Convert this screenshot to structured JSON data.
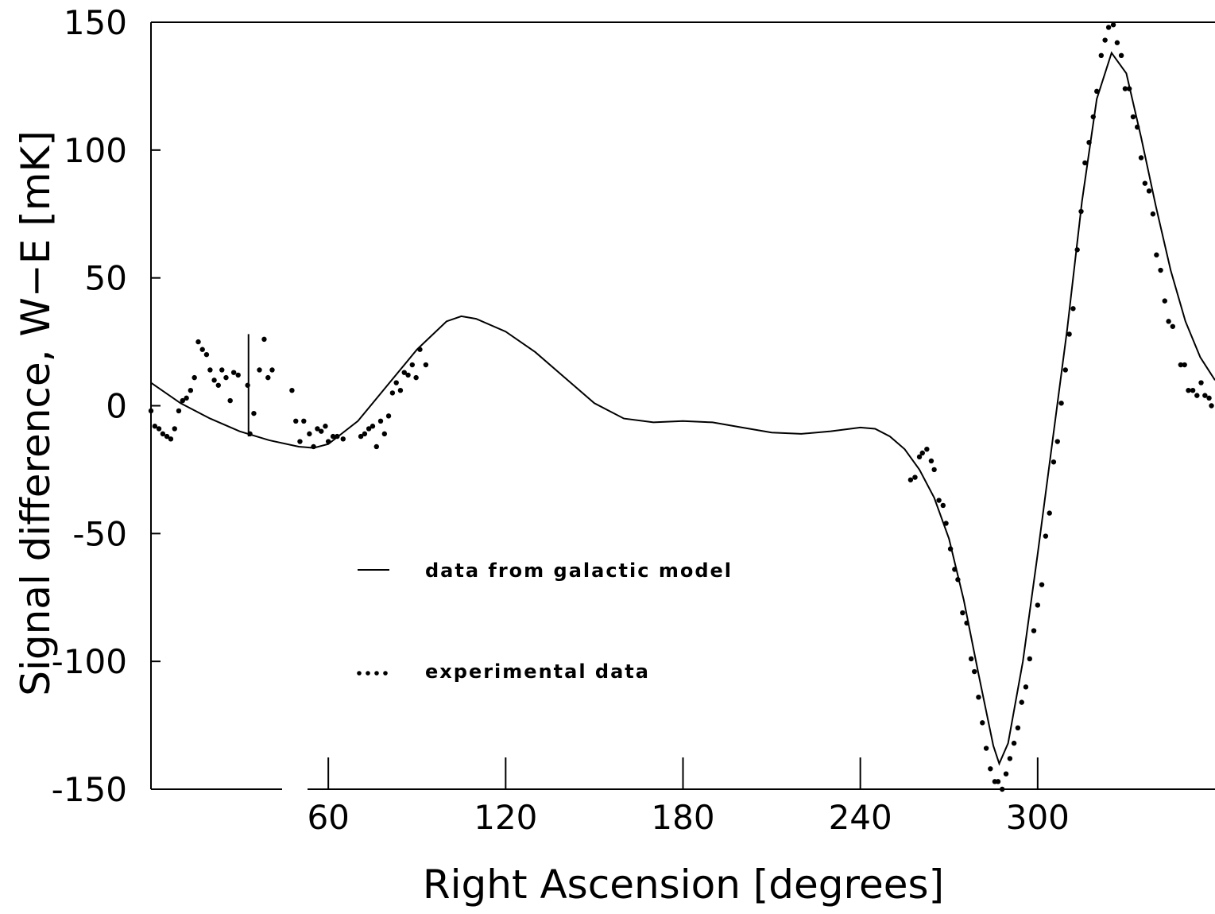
{
  "chart_data": {
    "type": "line",
    "x_label": "Right Ascension [degrees]",
    "y_label": "Signal difference, W−E [mK]",
    "xlim": [
      0,
      360
    ],
    "ylim": [
      -150,
      150
    ],
    "xticks": [
      60,
      120,
      180,
      240,
      300
    ],
    "yticks": [
      -150,
      -100,
      -50,
      0,
      50,
      100,
      150
    ],
    "legend": "lower left",
    "series": [
      {
        "name": "data from galactic model",
        "color": "#000000",
        "marker": "line",
        "x": [
          0,
          10,
          20,
          30,
          40,
          50,
          55,
          60,
          70,
          80,
          90,
          100,
          105,
          110,
          120,
          130,
          140,
          150,
          160,
          170,
          180,
          190,
          200,
          210,
          220,
          230,
          240,
          245,
          250,
          255,
          260,
          265,
          270,
          275,
          280,
          285,
          287,
          290,
          295,
          300,
          305,
          310,
          315,
          320,
          325,
          330,
          335,
          340,
          345,
          350,
          355,
          360
        ],
        "values": [
          9,
          1,
          -5,
          -10,
          -13.5,
          -16,
          -16.5,
          -15,
          -6,
          8,
          22,
          33,
          35,
          34,
          29,
          21,
          11,
          1,
          -5,
          -6.5,
          -6,
          -6.5,
          -8.5,
          -10.5,
          -11,
          -10,
          -8.5,
          -9,
          -12,
          -17,
          -25,
          -36,
          -52,
          -76,
          -105,
          -133,
          -140,
          -132,
          -100,
          -58,
          -14,
          30,
          80,
          120,
          138,
          130,
          105,
          78,
          53,
          33,
          19,
          10
        ]
      },
      {
        "name": "experimental data",
        "color": "#000000",
        "marker": "dot",
        "x": [
          0,
          1.3,
          2.7,
          4,
          5.4,
          6.7,
          8,
          9.4,
          10.7,
          12,
          13.4,
          14.7,
          16,
          17.4,
          18.8,
          20,
          21.4,
          22.8,
          24,
          25.4,
          26.8,
          28,
          29.5,
          32.7,
          33.5,
          34.8,
          36.7,
          38.3,
          39.6,
          41,
          47.7,
          49,
          50.4,
          51.7,
          53.6,
          55,
          56.3,
          57.6,
          59,
          60,
          61.6,
          63,
          65,
          71,
          72.3,
          73.7,
          75,
          76.3,
          77.7,
          79,
          80.4,
          81.7,
          83,
          84.4,
          85.7,
          87,
          88.4,
          89.7,
          91,
          93,
          257,
          258.5,
          260,
          261,
          262.5,
          264,
          265,
          266.6,
          268,
          269,
          270.5,
          271.9,
          273,
          274.6,
          276,
          277.5,
          278.6,
          280,
          281.3,
          282.6,
          284,
          285.5,
          286.6,
          288,
          289.3,
          290.6,
          292,
          293.3,
          294.6,
          296,
          297.3,
          298.7,
          300,
          301.4,
          302.7,
          304,
          305.4,
          306.7,
          308,
          309.4,
          310.7,
          312,
          313.4,
          314.7,
          316,
          317.4,
          318.8,
          320,
          321.5,
          322.8,
          324,
          325.6,
          326.9,
          328.3,
          329.6,
          331,
          332.3,
          333.7,
          335,
          336.3,
          337.7,
          339,
          340.2,
          341.6,
          343,
          344.3,
          345.7,
          348.4,
          349.7,
          351,
          352.5,
          353.9,
          355.3,
          356.6,
          358,
          358.8
        ],
        "values": [
          -2,
          -8,
          -9,
          -11,
          -12,
          -13,
          -9,
          -2,
          2,
          3,
          6,
          11,
          25,
          22,
          20,
          14,
          10,
          8,
          14,
          11,
          2,
          13,
          12,
          8,
          -11,
          -3,
          14,
          26,
          11,
          14,
          6,
          -6,
          -14,
          -6,
          -11,
          -16,
          -9,
          -10,
          -8,
          -14,
          -12,
          -12,
          -13,
          -12,
          -11,
          -9,
          -8,
          -16,
          -6,
          -11,
          -4,
          5,
          9,
          6,
          13,
          12,
          16,
          11,
          22,
          16,
          -29,
          -28,
          -20,
          -18.5,
          -17,
          -21.6,
          -25,
          -37,
          -39,
          -46,
          -56,
          -64,
          -68,
          -81,
          -85,
          -99,
          -104,
          -114,
          -124,
          -134,
          -142,
          -147,
          -147,
          -150,
          -144,
          -138,
          -132,
          -126,
          -116,
          -110,
          -99,
          -88,
          -78,
          -70,
          -51,
          -42,
          -22,
          -14,
          1,
          14,
          28,
          38,
          61,
          76,
          95,
          103,
          113,
          123,
          137,
          143,
          148,
          149,
          142,
          137,
          124,
          124,
          113,
          109,
          97,
          87,
          84,
          75,
          59,
          53,
          41,
          33,
          31,
          16,
          16,
          6,
          6,
          4,
          9,
          4,
          3,
          0
        ]
      }
    ],
    "error_bar": {
      "x": 33,
      "low": -12,
      "high": 28
    }
  }
}
